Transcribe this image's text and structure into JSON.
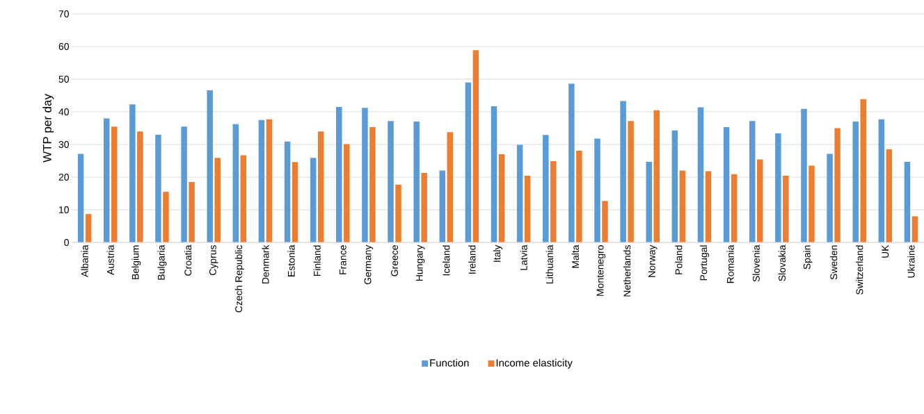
{
  "chart_data": {
    "type": "bar",
    "ylabel": "WTP per day",
    "categories": [
      "Albania",
      "Austria",
      "Belgium",
      "Bulgaria",
      "Croatia",
      "Cyprus",
      "Czech Republic",
      "Denmark",
      "Estonia",
      "Finland",
      "France",
      "Germany",
      "Greece",
      "Hungary",
      "Iceland",
      "Ireland",
      "Italy",
      "Latvia",
      "Lithuania",
      "Malta",
      "Montenegro",
      "Netherlands",
      "Norway",
      "Poland",
      "Portugal",
      "Romania",
      "Slovenia",
      "Slovakia",
      "Spain",
      "Sweden",
      "Switzerland",
      "UK",
      "Ukraine"
    ],
    "series": [
      {
        "name": "Function",
        "color": "#5b9bd5",
        "values": [
          27.1,
          38.0,
          42.3,
          33.0,
          35.5,
          46.6,
          36.2,
          37.5,
          30.9,
          25.9,
          41.5,
          41.2,
          37.2,
          37.0,
          22.0,
          49.0,
          41.7,
          29.9,
          32.9,
          48.6,
          31.8,
          43.3,
          24.7,
          34.3,
          41.4,
          35.3,
          37.2,
          33.4,
          40.9,
          27.1,
          37.0,
          37.7,
          24.7
        ]
      },
      {
        "name": "Income elasticity",
        "color": "#ed7d31",
        "values": [
          8.7,
          35.5,
          34.0,
          15.5,
          18.5,
          25.9,
          26.7,
          37.7,
          24.6,
          34.0,
          30.1,
          35.3,
          17.7,
          21.3,
          33.8,
          58.9,
          27.0,
          20.4,
          24.9,
          28.1,
          12.7,
          37.2,
          40.5,
          22.0,
          21.8,
          20.9,
          25.4,
          20.4,
          23.5,
          35.0,
          43.9,
          28.5,
          8.0
        ]
      }
    ],
    "ylim": [
      0,
      70
    ],
    "yticks": [
      0,
      10,
      20,
      30,
      40,
      50,
      60,
      70
    ],
    "grid": "y",
    "legend": "bottom"
  }
}
